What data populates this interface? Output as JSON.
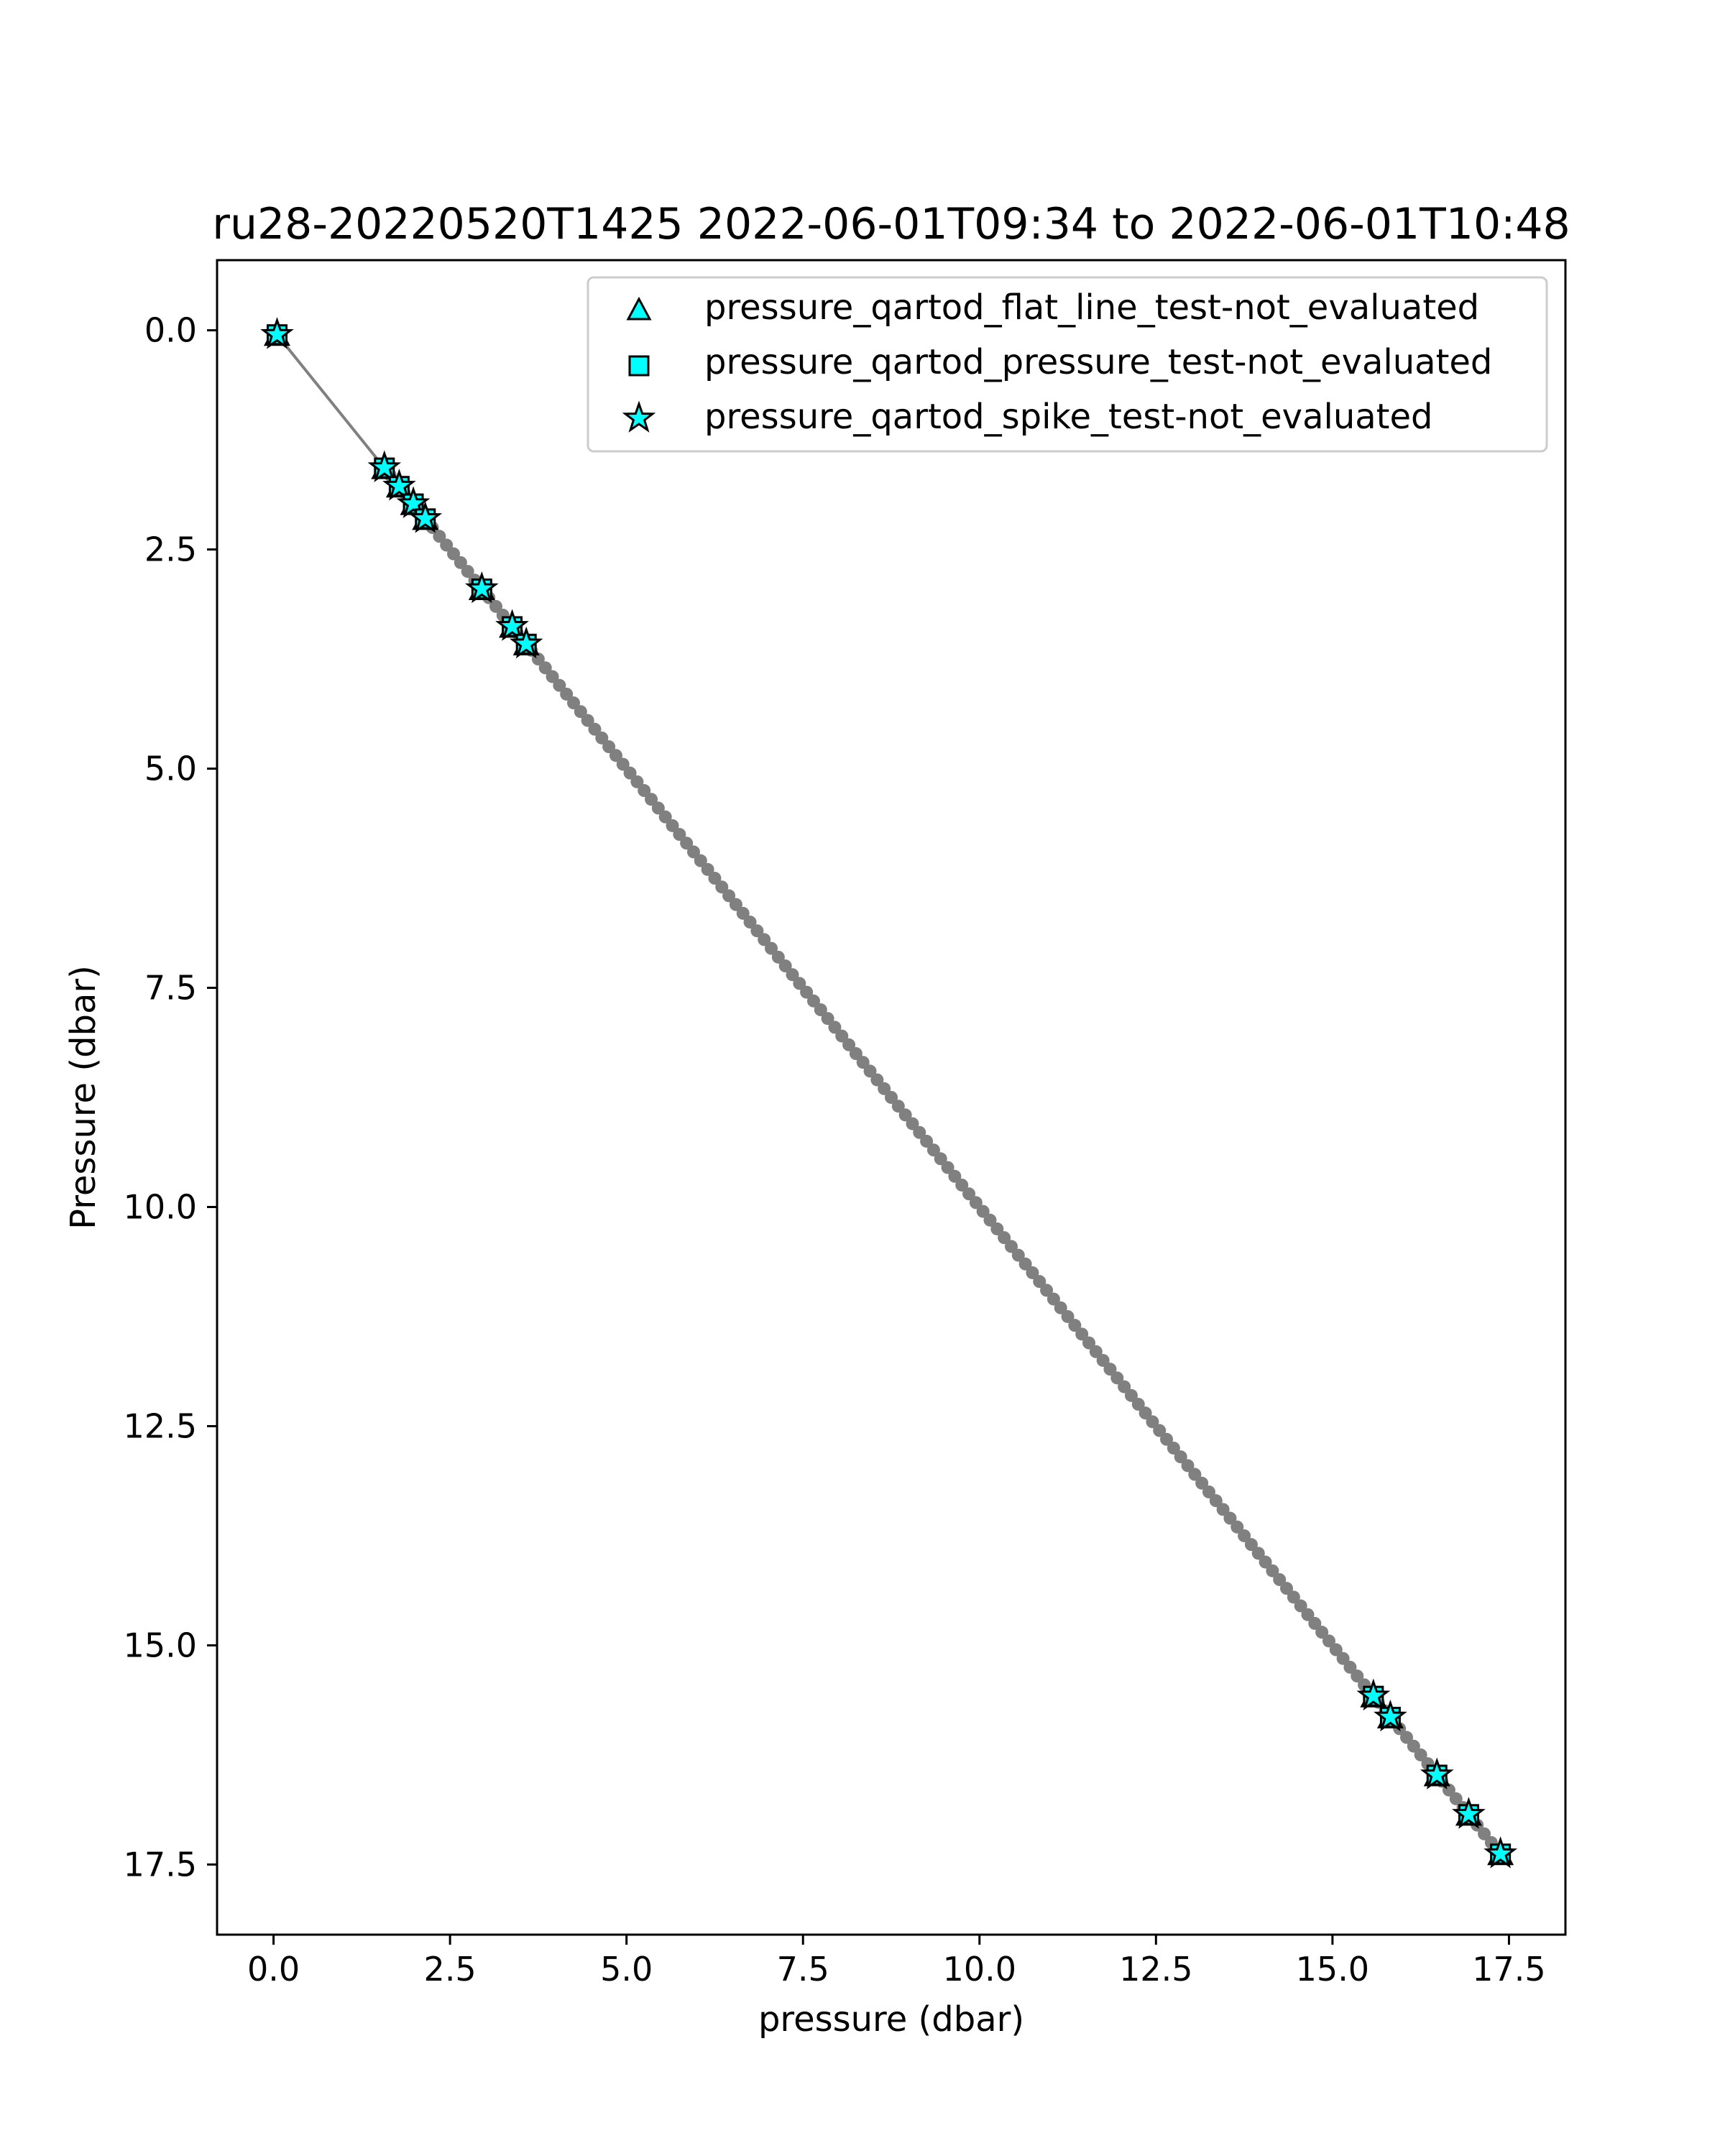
{
  "chart_data": {
    "type": "scatter",
    "title": "ru28-20220520T1425 2022-06-01T09:34 to 2022-06-01T10:48",
    "xlabel": "pressure (dbar)",
    "ylabel": "Pressure (dbar)",
    "xlim": [
      -0.8,
      18.3
    ],
    "ylim": [
      18.3,
      -0.8
    ],
    "y_inverted": true,
    "grid": false,
    "x_ticks": [
      "0.0",
      "2.5",
      "5.0",
      "7.5",
      "10.0",
      "12.5",
      "15.0",
      "17.5"
    ],
    "y_ticks": [
      "0.0",
      "2.5",
      "5.0",
      "7.5",
      "10.0",
      "12.5",
      "15.0",
      "17.5"
    ],
    "x_tick_values": [
      0,
      2.5,
      5,
      7.5,
      10,
      12.5,
      15,
      17.5
    ],
    "y_tick_values": [
      0,
      2.5,
      5,
      7.5,
      10,
      12.5,
      15,
      17.5
    ],
    "line_color": "#808080",
    "marker_face_color": "#00FFFF",
    "marker_edge_color": "#000000",
    "legend_position": "top-right",
    "profile_x": [
      0.05,
      1.55,
      1.65,
      1.75,
      1.85,
      1.95,
      2.05,
      2.15,
      2.25,
      2.35,
      2.45,
      2.55,
      2.65,
      2.75,
      2.85,
      2.95,
      3.05,
      3.15,
      3.25,
      3.35,
      3.45,
      3.55,
      3.65,
      3.75,
      3.85,
      3.95,
      4.05,
      4.15,
      4.25,
      4.35,
      4.45,
      4.55,
      4.65,
      4.75,
      4.85,
      4.95,
      5.05,
      5.15,
      5.25,
      5.35,
      5.45,
      5.55,
      5.65,
      5.75,
      5.85,
      5.95,
      6.05,
      6.15,
      6.25,
      6.35,
      6.45,
      6.55,
      6.65,
      6.75,
      6.85,
      6.95,
      7.05,
      7.15,
      7.25,
      7.35,
      7.45,
      7.55,
      7.65,
      7.75,
      7.85,
      7.95,
      8.05,
      8.15,
      8.25,
      8.35,
      8.45,
      8.55,
      8.65,
      8.75,
      8.85,
      8.95,
      9.05,
      9.15,
      9.25,
      9.35,
      9.45,
      9.55,
      9.65,
      9.75,
      9.85,
      9.95,
      10.05,
      10.15,
      10.25,
      10.35,
      10.45,
      10.55,
      10.65,
      10.75,
      10.85,
      10.95,
      11.05,
      11.15,
      11.25,
      11.35,
      11.45,
      11.55,
      11.65,
      11.75,
      11.85,
      11.95,
      12.05,
      12.15,
      12.25,
      12.35,
      12.45,
      12.55,
      12.65,
      12.75,
      12.85,
      12.95,
      13.05,
      13.15,
      13.25,
      13.35,
      13.45,
      13.55,
      13.65,
      13.75,
      13.85,
      13.95,
      14.05,
      14.15,
      14.25,
      14.35,
      14.45,
      14.55,
      14.65,
      14.75,
      14.85,
      14.95,
      15.05,
      15.15,
      15.25,
      15.35,
      15.45,
      15.55,
      15.65,
      15.75,
      15.85,
      15.95,
      16.05,
      16.15,
      16.25,
      16.35,
      16.45,
      16.55,
      16.65,
      16.75,
      16.85,
      16.95,
      17.05,
      17.15,
      17.25,
      17.38
    ],
    "flagged_points": [
      {
        "x": 0.05,
        "y": 0.05
      },
      {
        "x": 1.57,
        "y": 1.57
      },
      {
        "x": 1.78,
        "y": 1.78
      },
      {
        "x": 1.98,
        "y": 1.98
      },
      {
        "x": 2.15,
        "y": 2.15
      },
      {
        "x": 2.95,
        "y": 2.95
      },
      {
        "x": 3.38,
        "y": 3.38
      },
      {
        "x": 3.58,
        "y": 3.58
      },
      {
        "x": 15.58,
        "y": 15.58
      },
      {
        "x": 15.82,
        "y": 15.82
      },
      {
        "x": 16.48,
        "y": 16.48
      },
      {
        "x": 16.93,
        "y": 16.93
      },
      {
        "x": 17.38,
        "y": 17.38
      }
    ],
    "legend": [
      {
        "name": "pressure_qartod_flat_line_test-not_evaluated",
        "marker": "triangle"
      },
      {
        "name": "pressure_qartod_pressure_test-not_evaluated",
        "marker": "square"
      },
      {
        "name": "pressure_qartod_spike_test-not_evaluated",
        "marker": "star"
      }
    ]
  }
}
